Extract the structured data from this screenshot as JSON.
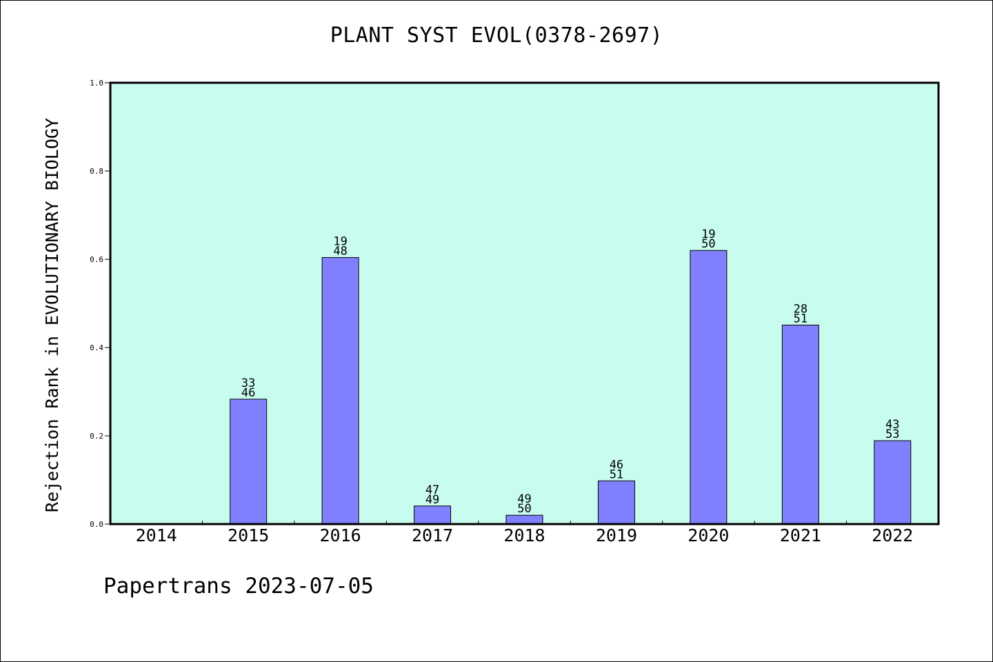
{
  "chart_data": {
    "type": "bar",
    "title": "PLANT SYST EVOL(0378-2697)",
    "ylabel": "Rejection Rank in EVOLUTIONARY BIOLOGY",
    "xlabel": "",
    "ylim": [
      0,
      1.0
    ],
    "yticks": [
      "0.0",
      "0.2",
      "0.4",
      "0.6",
      "0.8",
      "1.0"
    ],
    "grid": false,
    "categories": [
      "2014",
      "2015",
      "2016",
      "2017",
      "2018",
      "2019",
      "2020",
      "2021",
      "2022"
    ],
    "values": [
      0,
      0.283,
      0.604,
      0.041,
      0.02,
      0.098,
      0.62,
      0.451,
      0.189
    ],
    "label_top": [
      "",
      "33",
      "19",
      "47",
      "49",
      "46",
      "19",
      "28",
      "43"
    ],
    "label_bottom": [
      "",
      "46",
      "48",
      "49",
      "50",
      "51",
      "50",
      "51",
      "53"
    ],
    "plot_background": "#c8fcee",
    "bar_color": "#8080ff"
  },
  "footer": "Papertrans 2023-07-05"
}
